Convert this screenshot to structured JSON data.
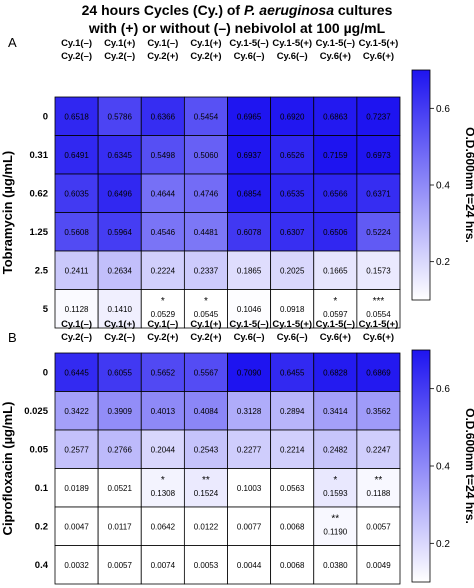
{
  "figure": {
    "title_line1_pre": "24 hours Cycles (Cy.) of ",
    "title_line1_italic": "P. aeruginosa",
    "title_line1_post": " cultures",
    "title_line2": "with (+) or without (–) nebivolol at 100 µg/mL"
  },
  "chart_data": [
    {
      "type": "heatmap",
      "panel_label": "A",
      "ylabel": "Tobramycin (µg/mL)",
      "colorbar_label": "O.D.600nm t=24 hrs.",
      "colorbar_ticks": [
        "0.6",
        "0.4",
        "0.2"
      ],
      "colorbar_range": [
        0.1,
        0.7
      ],
      "columns": [
        [
          "Cy.1(–)",
          "Cy.2(–)"
        ],
        [
          "Cy.1(+)",
          "Cy.2(–)"
        ],
        [
          "Cy.1(–)",
          "Cy.2(+)"
        ],
        [
          "Cy.1(+)",
          "Cy.2(+)"
        ],
        [
          "Cy.1-5(–)",
          "Cy.6(–)"
        ],
        [
          "Cy.1-5(+)",
          "Cy.6(–)"
        ],
        [
          "Cy.1-5(–)",
          "Cy.6(+)"
        ],
        [
          "Cy.1-5(+)",
          "Cy.6(+)"
        ]
      ],
      "rows": [
        "0",
        "0.31",
        "0.62",
        "1.25",
        "2.5",
        "5"
      ],
      "values": [
        [
          "0.6518",
          "0.5786",
          "0.6366",
          "0.5454",
          "0.6965",
          "0.6920",
          "0.6863",
          "0.7237"
        ],
        [
          "0.6491",
          "0.6345",
          "0.5498",
          "0.5060",
          "0.6937",
          "0.6526",
          "0.7159",
          "0.6973"
        ],
        [
          "0.6035",
          "0.6496",
          "0.4644",
          "0.4746",
          "0.6854",
          "0.6535",
          "0.6566",
          "0.6371"
        ],
        [
          "0.5608",
          "0.5964",
          "0.4546",
          "0.4481",
          "0.6078",
          "0.6307",
          "0.6506",
          "0.5224"
        ],
        [
          "0.2411",
          "0.2634",
          "0.2224",
          "0.2337",
          "0.1865",
          "0.2025",
          "0.1665",
          "0.1573"
        ],
        [
          "0.1128",
          "0.1410",
          "0.0529",
          "0.0545",
          "0.1046",
          "0.0918",
          "0.0597",
          "0.0554"
        ]
      ],
      "stars": [
        [
          "",
          "",
          "",
          "",
          "",
          "",
          "",
          ""
        ],
        [
          "",
          "",
          "",
          "",
          "",
          "",
          "",
          ""
        ],
        [
          "",
          "",
          "",
          "",
          "",
          "",
          "",
          ""
        ],
        [
          "",
          "",
          "",
          "",
          "",
          "",
          "",
          ""
        ],
        [
          "",
          "",
          "",
          "",
          "",
          "",
          "",
          ""
        ],
        [
          "",
          "",
          "*",
          "*",
          "",
          "",
          "*",
          "***"
        ]
      ]
    },
    {
      "type": "heatmap",
      "panel_label": "B",
      "ylabel": "Ciprofloxacin (µg/mL)",
      "colorbar_label": "O.D.600nm t=24 hrs.",
      "colorbar_ticks": [
        "0.6",
        "0.4",
        "0.2"
      ],
      "colorbar_range": [
        0.1,
        0.7
      ],
      "columns": [
        [
          "Cy.1(–)",
          "Cy.2(–)"
        ],
        [
          "Cy.1(+)",
          "Cy.2(–)"
        ],
        [
          "Cy.1(–)",
          "Cy.2(+)"
        ],
        [
          "Cy.1(+)",
          "Cy.2(+)"
        ],
        [
          "Cy.1-5(–)",
          "Cy.6(–)"
        ],
        [
          "Cy.1-5(+)",
          "Cy.6(–)"
        ],
        [
          "Cy.1-5(–)",
          "Cy.6(+)"
        ],
        [
          "Cy.1-5(+)",
          "Cy.6(+)"
        ]
      ],
      "rows": [
        "0",
        "0.025",
        "0.05",
        "0.1",
        "0.2",
        "0.4"
      ],
      "values": [
        [
          "0.6445",
          "0.6055",
          "0.5652",
          "0.5567",
          "0.7090",
          "0.6455",
          "0.6828",
          "0.6869"
        ],
        [
          "0.3422",
          "0.3909",
          "0.4013",
          "0.4084",
          "0.3128",
          "0.2894",
          "0.3414",
          "0.3562"
        ],
        [
          "0.2577",
          "0.2766",
          "0.2044",
          "0.2543",
          "0.2277",
          "0.2214",
          "0.2482",
          "0.2247"
        ],
        [
          "0.0189",
          "0.0521",
          "0.1308",
          "0.1524",
          "0.1003",
          "0.0563",
          "0.1593",
          "0.1188"
        ],
        [
          "0.0047",
          "0.0117",
          "0.0642",
          "0.0122",
          "0.0077",
          "0.0068",
          "0.1190",
          "0.0057"
        ],
        [
          "0.0032",
          "0.0057",
          "0.0074",
          "0.0053",
          "0.0044",
          "0.0068",
          "0.0380",
          "0.0049"
        ]
      ],
      "stars": [
        [
          "",
          "",
          "",
          "",
          "",
          "",
          "",
          ""
        ],
        [
          "",
          "",
          "",
          "",
          "",
          "",
          "",
          ""
        ],
        [
          "",
          "",
          "",
          "",
          "",
          "",
          "",
          ""
        ],
        [
          "",
          "",
          "*",
          "**",
          "",
          "",
          "*",
          "**"
        ],
        [
          "",
          "",
          "",
          "",
          "",
          "",
          "**",
          ""
        ],
        [
          "",
          "",
          "",
          "",
          "",
          "",
          "",
          ""
        ]
      ]
    }
  ],
  "colors": {
    "high": "#1e14f0",
    "low": "#ffffff",
    "grid": "#000000"
  }
}
